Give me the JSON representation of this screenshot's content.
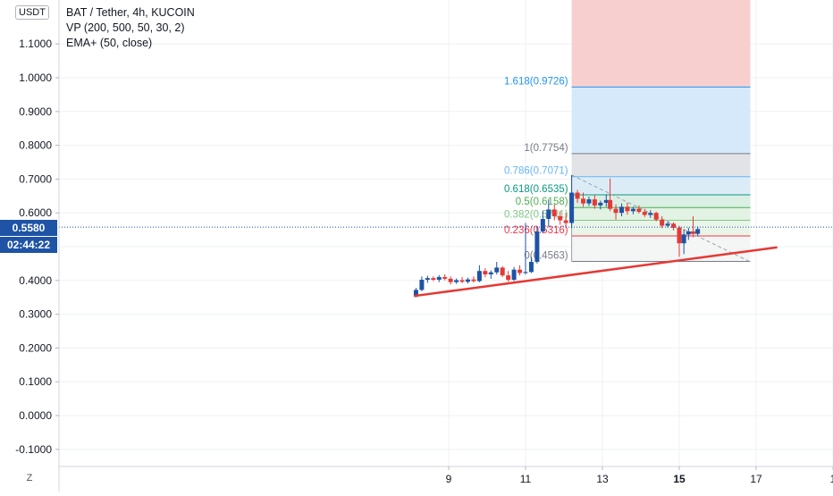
{
  "header": {
    "currency": "USDT",
    "symbol_line": "BAT / Tether, 4h, KUCOIN",
    "indicator_vp": "VP (200, 500, 50, 30, 2)",
    "indicator_ema": "EMA+ (50, close)"
  },
  "price_badge": {
    "price": "0.5580",
    "countdown": "02:44:22"
  },
  "z_button": "Z",
  "colors": {
    "up": "#1e53a5",
    "down": "#e53935",
    "trendline": "#e53935",
    "last_price_line": "#1e53a5",
    "fib_line_1618": "#2196f3",
    "fib_line_1": "#787b86",
    "fib_line_0786": "#64b5f6",
    "fib_line_0618": "#089981",
    "fib_line_05": "#4caf50",
    "fib_line_0382": "#81c784",
    "fib_line_0236": "#f23645",
    "fib_line_0": "#787b86"
  },
  "chart_data": {
    "type": "candlestick",
    "y_axis": {
      "range": [
        -0.13,
        1.18
      ],
      "ticks": [
        "1.1000",
        "1.0000",
        "0.9000",
        "0.8000",
        "0.7000",
        "0.6000",
        "0.4000",
        "0.3000",
        "0.2000",
        "0.1000",
        "0.0000",
        "-0.1000"
      ],
      "tick_values": [
        1.1,
        1.0,
        0.9,
        0.8,
        0.7,
        0.6,
        0.4,
        0.3,
        0.2,
        0.1,
        0.0,
        -0.1
      ]
    },
    "x_axis": {
      "range_days": [
        6.5,
        18.3
      ],
      "ticks": [
        {
          "label": "9",
          "day": 9,
          "bold": false
        },
        {
          "label": "11",
          "day": 11,
          "bold": false
        },
        {
          "label": "13",
          "day": 13,
          "bold": false
        },
        {
          "label": "15",
          "day": 15,
          "bold": true
        },
        {
          "label": "17",
          "day": 17,
          "bold": false
        },
        {
          "label": "1",
          "day": 19,
          "bold": false
        }
      ]
    },
    "grid": true,
    "last_price": 0.558,
    "candles": [
      {
        "d": 8.15,
        "o": 0.352,
        "h": 0.378,
        "l": 0.35,
        "c": 0.372
      },
      {
        "d": 8.3,
        "o": 0.372,
        "h": 0.412,
        "l": 0.368,
        "c": 0.402
      },
      {
        "d": 8.45,
        "o": 0.402,
        "h": 0.414,
        "l": 0.393,
        "c": 0.407
      },
      {
        "d": 8.6,
        "o": 0.407,
        "h": 0.412,
        "l": 0.398,
        "c": 0.402
      },
      {
        "d": 8.75,
        "o": 0.402,
        "h": 0.416,
        "l": 0.395,
        "c": 0.41
      },
      {
        "d": 8.9,
        "o": 0.41,
        "h": 0.418,
        "l": 0.4,
        "c": 0.405
      },
      {
        "d": 9.05,
        "o": 0.405,
        "h": 0.412,
        "l": 0.388,
        "c": 0.395
      },
      {
        "d": 9.2,
        "o": 0.395,
        "h": 0.406,
        "l": 0.39,
        "c": 0.401
      },
      {
        "d": 9.35,
        "o": 0.401,
        "h": 0.41,
        "l": 0.392,
        "c": 0.396
      },
      {
        "d": 9.5,
        "o": 0.396,
        "h": 0.408,
        "l": 0.391,
        "c": 0.403
      },
      {
        "d": 9.65,
        "o": 0.403,
        "h": 0.412,
        "l": 0.394,
        "c": 0.398
      },
      {
        "d": 9.8,
        "o": 0.398,
        "h": 0.445,
        "l": 0.395,
        "c": 0.428
      },
      {
        "d": 9.95,
        "o": 0.428,
        "h": 0.436,
        "l": 0.41,
        "c": 0.418
      },
      {
        "d": 10.1,
        "o": 0.418,
        "h": 0.43,
        "l": 0.405,
        "c": 0.424
      },
      {
        "d": 10.25,
        "o": 0.424,
        "h": 0.455,
        "l": 0.418,
        "c": 0.438
      },
      {
        "d": 10.4,
        "o": 0.438,
        "h": 0.442,
        "l": 0.41,
        "c": 0.415
      },
      {
        "d": 10.55,
        "o": 0.415,
        "h": 0.428,
        "l": 0.396,
        "c": 0.402
      },
      {
        "d": 10.7,
        "o": 0.402,
        "h": 0.44,
        "l": 0.398,
        "c": 0.432
      },
      {
        "d": 10.85,
        "o": 0.432,
        "h": 0.445,
        "l": 0.415,
        "c": 0.422
      },
      {
        "d": 11.0,
        "o": 0.422,
        "h": 0.57,
        "l": 0.418,
        "c": 0.425
      },
      {
        "d": 11.15,
        "o": 0.425,
        "h": 0.47,
        "l": 0.422,
        "c": 0.455
      },
      {
        "d": 11.3,
        "o": 0.455,
        "h": 0.56,
        "l": 0.45,
        "c": 0.545
      },
      {
        "d": 11.45,
        "o": 0.545,
        "h": 0.605,
        "l": 0.54,
        "c": 0.582
      },
      {
        "d": 11.6,
        "o": 0.582,
        "h": 0.64,
        "l": 0.56,
        "c": 0.61
      },
      {
        "d": 11.75,
        "o": 0.61,
        "h": 0.625,
        "l": 0.578,
        "c": 0.59
      },
      {
        "d": 11.9,
        "o": 0.59,
        "h": 0.604,
        "l": 0.565,
        "c": 0.578
      },
      {
        "d": 12.05,
        "o": 0.578,
        "h": 0.6,
        "l": 0.555,
        "c": 0.57
      },
      {
        "d": 12.2,
        "o": 0.57,
        "h": 0.712,
        "l": 0.555,
        "c": 0.66
      },
      {
        "d": 12.35,
        "o": 0.66,
        "h": 0.668,
        "l": 0.63,
        "c": 0.642
      },
      {
        "d": 12.5,
        "o": 0.642,
        "h": 0.66,
        "l": 0.618,
        "c": 0.628
      },
      {
        "d": 12.65,
        "o": 0.628,
        "h": 0.648,
        "l": 0.62,
        "c": 0.64
      },
      {
        "d": 12.8,
        "o": 0.64,
        "h": 0.652,
        "l": 0.612,
        "c": 0.622
      },
      {
        "d": 12.95,
        "o": 0.622,
        "h": 0.636,
        "l": 0.61,
        "c": 0.63
      },
      {
        "d": 13.1,
        "o": 0.63,
        "h": 0.655,
        "l": 0.618,
        "c": 0.638
      },
      {
        "d": 13.2,
        "o": 0.638,
        "h": 0.702,
        "l": 0.605,
        "c": 0.612
      },
      {
        "d": 13.35,
        "o": 0.612,
        "h": 0.625,
        "l": 0.58,
        "c": 0.6
      },
      {
        "d": 13.5,
        "o": 0.6,
        "h": 0.628,
        "l": 0.59,
        "c": 0.618
      },
      {
        "d": 13.65,
        "o": 0.618,
        "h": 0.63,
        "l": 0.595,
        "c": 0.605
      },
      {
        "d": 13.8,
        "o": 0.605,
        "h": 0.618,
        "l": 0.596,
        "c": 0.612
      },
      {
        "d": 13.95,
        "o": 0.612,
        "h": 0.622,
        "l": 0.598,
        "c": 0.603
      },
      {
        "d": 14.1,
        "o": 0.603,
        "h": 0.612,
        "l": 0.588,
        "c": 0.594
      },
      {
        "d": 14.25,
        "o": 0.594,
        "h": 0.608,
        "l": 0.585,
        "c": 0.6
      },
      {
        "d": 14.4,
        "o": 0.6,
        "h": 0.604,
        "l": 0.575,
        "c": 0.58
      },
      {
        "d": 14.55,
        "o": 0.58,
        "h": 0.59,
        "l": 0.555,
        "c": 0.562
      },
      {
        "d": 14.7,
        "o": 0.562,
        "h": 0.575,
        "l": 0.556,
        "c": 0.568
      },
      {
        "d": 14.85,
        "o": 0.568,
        "h": 0.572,
        "l": 0.548,
        "c": 0.556
      },
      {
        "d": 15.0,
        "o": 0.556,
        "h": 0.562,
        "l": 0.47,
        "c": 0.51
      },
      {
        "d": 15.12,
        "o": 0.51,
        "h": 0.552,
        "l": 0.478,
        "c": 0.536
      },
      {
        "d": 15.24,
        "o": 0.536,
        "h": 0.556,
        "l": 0.52,
        "c": 0.545
      },
      {
        "d": 15.36,
        "o": 0.545,
        "h": 0.59,
        "l": 0.528,
        "c": 0.538
      },
      {
        "d": 15.48,
        "o": 0.538,
        "h": 0.56,
        "l": 0.532,
        "c": 0.552
      }
    ],
    "trendline": {
      "from": {
        "d": 8.1,
        "y": 0.354
      },
      "to": {
        "d": 17.55,
        "y": 0.498
      }
    },
    "fib": {
      "start_day": 12.2,
      "end_day": 16.85,
      "diag_from": {
        "d": 12.2,
        "y": 0.712
      },
      "diag_to": {
        "d": 16.85,
        "y": 0.455
      },
      "top_shade": {
        "from": 0.9726,
        "to": 1.18,
        "color": "#f8cfcf"
      },
      "levels": [
        {
          "label": "1.618(0.9726)",
          "value": 0.9726,
          "line": "#2196f3",
          "fill_to": 0.7754,
          "fill": "#d6e9fb"
        },
        {
          "label": "1(0.7754)",
          "value": 0.7754,
          "line": "#787b86",
          "fill_to": 0.7071,
          "fill": "#e2e3e6"
        },
        {
          "label": "0.786(0.7071)",
          "value": 0.7071,
          "line": "#64b5f6",
          "fill_to": 0.6535,
          "fill": "#dcecf7"
        },
        {
          "label": "0.618(0.6535)",
          "value": 0.6535,
          "line": "#089981",
          "fill_to": 0.6158,
          "fill": "#dbefe5"
        },
        {
          "label": "0.5(0.6158)",
          "value": 0.6158,
          "line": "#4caf50",
          "fill_to": 0.5781,
          "fill": "#e2f2e3"
        },
        {
          "label": "0.382(0.5781)",
          "value": 0.5781,
          "line": "#81c784",
          "fill_to": 0.5316,
          "fill": "#eaf5ea"
        },
        {
          "label": "0.236(0.5316)",
          "value": 0.5316,
          "line": "#f23645",
          "fill_to": 0.4563,
          "fill": "#f4f5f5"
        },
        {
          "label": "0(0.4563)",
          "value": 0.4563,
          "line": "#787b86",
          "fill_to": null,
          "fill": null
        }
      ]
    }
  }
}
